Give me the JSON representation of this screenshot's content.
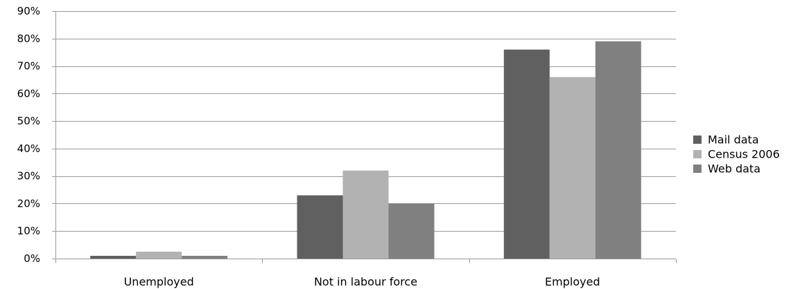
{
  "chart_data": {
    "type": "bar",
    "title": "",
    "xlabel": "",
    "ylabel": "",
    "categories": [
      "Unemployed",
      "Not in labour force",
      "Employed"
    ],
    "series": [
      {
        "name": "Mail data",
        "values": [
          1,
          23,
          76
        ],
        "color": "#606060"
      },
      {
        "name": "Census 2006",
        "values": [
          2.5,
          32,
          66
        ],
        "color": "#b2b2b2"
      },
      {
        "name": "Web data",
        "values": [
          1,
          20,
          79
        ],
        "color": "#808080"
      }
    ],
    "ylim": [
      0,
      90
    ],
    "yticks": [
      0,
      10,
      20,
      30,
      40,
      50,
      60,
      70,
      80,
      90
    ],
    "ytick_labels": [
      "0%",
      "10%",
      "20%",
      "30%",
      "40%",
      "50%",
      "60%",
      "70%",
      "80%",
      "90%"
    ],
    "grid": true,
    "legend_position": "right",
    "colors": {
      "gridline": "#999999",
      "axis": "#999999",
      "text": "#000000"
    }
  }
}
